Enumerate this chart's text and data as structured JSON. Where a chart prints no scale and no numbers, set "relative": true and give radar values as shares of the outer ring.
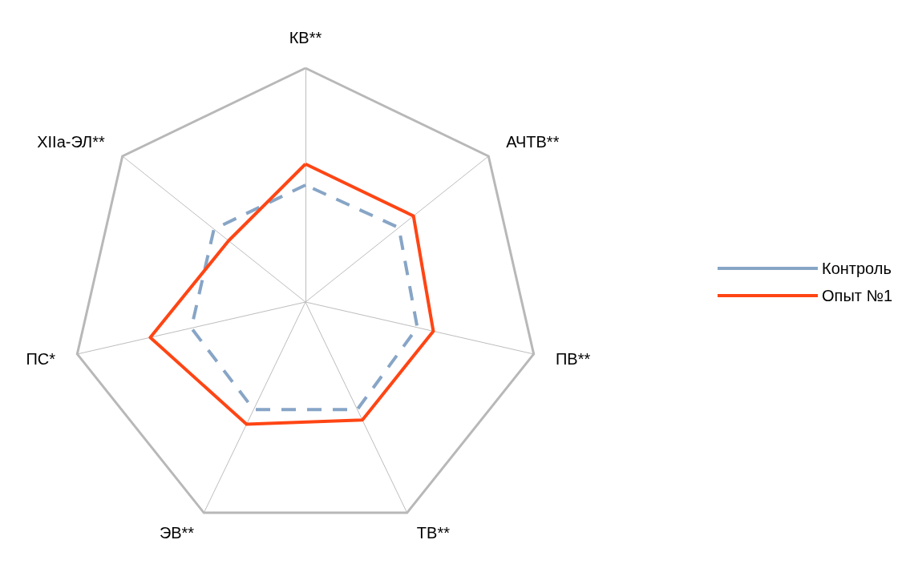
{
  "chart_data": {
    "type": "radar",
    "relative": true,
    "categories": [
      "КВ**",
      "АЧТВ**",
      "ПВ**",
      "ТВ**",
      "ЭВ**",
      "ПС*",
      "XIIa-ЭЛ**"
    ],
    "series": [
      {
        "name": "Контроль",
        "color": "#87a5c6",
        "line_style": "dashed",
        "values": [
          0.5,
          0.51,
          0.49,
          0.51,
          0.51,
          0.5,
          0.5
        ]
      },
      {
        "name": "Опыт №1",
        "color": "#ff4514",
        "line_style": "solid",
        "values": [
          0.59,
          0.59,
          0.56,
          0.56,
          0.58,
          0.68,
          0.42
        ]
      }
    ],
    "legend": "right",
    "marker": "none"
  }
}
